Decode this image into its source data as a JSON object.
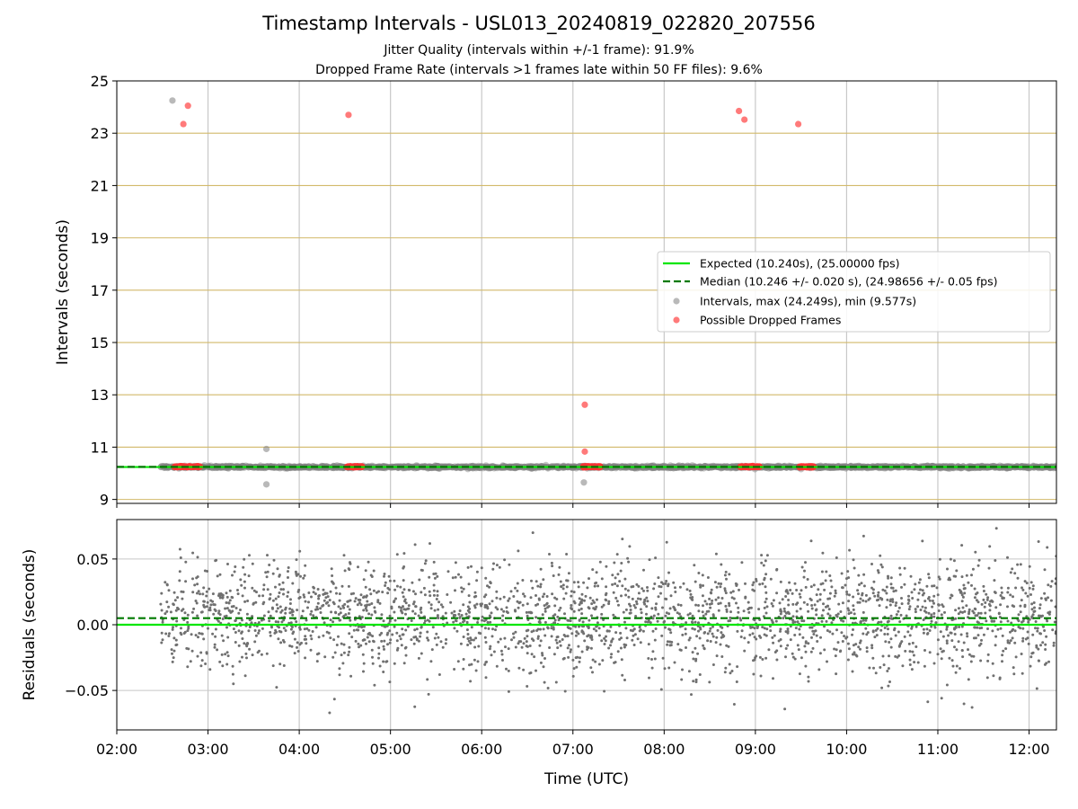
{
  "title": "Timestamp Intervals - USL013_20240819_022820_207556",
  "subtitle_lines": [
    "Jitter Quality (intervals within +/-1 frame): 91.9%",
    "Dropped Frame Rate (intervals >1 frames late within 50 FF files): 9.6%"
  ],
  "colors": {
    "expected": "#00e600",
    "median": "#007a00",
    "intervals": "#808080",
    "dropped": "#ff3333",
    "hgrid_top": "#d2b96a",
    "grid": "#c8c8c8"
  },
  "chart_data": [
    {
      "type": "scatter",
      "ylabel": "Intervals (seconds)",
      "ylim": [
        8.85,
        25
      ],
      "yticks": [
        9,
        11,
        13,
        15,
        17,
        19,
        21,
        23,
        25
      ],
      "xlim_hours": [
        2.0,
        12.3
      ],
      "grid": true,
      "legend_placement": "center-right",
      "legend": [
        "Expected (10.240s), (25.00000 fps)",
        "Median (10.246 +/- 0.020 s), (24.98656 +/- 0.05 fps)",
        "Intervals, max (24.249s), min (9.577s)",
        "Possible Dropped Frames"
      ],
      "series": [
        {
          "name": "Expected (10.240s), (25.00000 fps)",
          "kind": "hline",
          "y": 10.24
        },
        {
          "name": "Median (10.246 +/- 0.020 s), (24.98656 +/- 0.05 fps)",
          "kind": "hline",
          "y": 10.246
        },
        {
          "name": "Intervals, max (24.249s), min (9.577s)",
          "kind": "scatter",
          "band": {
            "x_start": 2.48,
            "x_end": 12.3,
            "y": 10.24
          },
          "outliers": [
            {
              "x": 2.61,
              "y": 24.249
            },
            {
              "x": 3.64,
              "y": 10.93
            },
            {
              "x": 3.64,
              "y": 9.577
            },
            {
              "x": 7.12,
              "y": 9.65
            }
          ]
        },
        {
          "name": "Possible Dropped Frames",
          "kind": "scatter",
          "clusters": [
            {
              "x_start": 2.62,
              "x_end": 2.93,
              "y": 10.25
            },
            {
              "x_start": 4.52,
              "x_end": 4.7,
              "y": 10.25
            },
            {
              "x_start": 7.11,
              "x_end": 7.3,
              "y": 10.25
            },
            {
              "x_start": 8.82,
              "x_end": 9.05,
              "y": 10.25
            },
            {
              "x_start": 9.48,
              "x_end": 9.64,
              "y": 10.25
            }
          ],
          "outliers": [
            {
              "x": 2.73,
              "y": 23.35
            },
            {
              "x": 2.78,
              "y": 24.05
            },
            {
              "x": 4.54,
              "y": 23.7
            },
            {
              "x": 7.13,
              "y": 12.62
            },
            {
              "x": 7.13,
              "y": 10.83
            },
            {
              "x": 8.82,
              "y": 23.85
            },
            {
              "x": 8.88,
              "y": 23.52
            },
            {
              "x": 9.47,
              "y": 23.35
            }
          ]
        }
      ]
    },
    {
      "type": "scatter",
      "xlabel": "Time (UTC)",
      "ylabel": "Residuals (seconds)",
      "ylim": [
        -0.08,
        0.08
      ],
      "yticks": [
        0.05,
        0.0,
        -0.05
      ],
      "ytick_labels": [
        "0.05",
        "0.00",
        "−0.05"
      ],
      "xlim_hours": [
        2.0,
        12.3
      ],
      "xticks_hours": [
        2,
        3,
        4,
        5,
        6,
        7,
        8,
        9,
        10,
        11,
        12
      ],
      "xtick_labels": [
        "02:00",
        "03:00",
        "04:00",
        "05:00",
        "06:00",
        "07:00",
        "08:00",
        "09:00",
        "10:00",
        "11:00",
        "12:00"
      ],
      "grid": true,
      "series": [
        {
          "kind": "hline",
          "y": 0.0,
          "style": "expected"
        },
        {
          "kind": "hline",
          "y": 0.005,
          "style": "median"
        },
        {
          "kind": "scatter",
          "x_start": 2.48,
          "x_end": 12.3,
          "mean": 0.005,
          "std": 0.021,
          "n": 2600
        }
      ]
    }
  ]
}
